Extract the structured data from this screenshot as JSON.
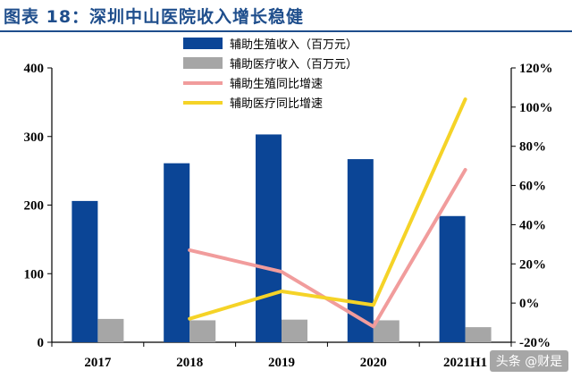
{
  "title": "图表 18：深圳中山医院收入增长稳健",
  "watermark": "头条 @财是",
  "colors": {
    "title": "#1f4e8c",
    "bar_primary": "#0b4596",
    "bar_secondary": "#a6a6a6",
    "line_primary": "#f19c9c",
    "line_secondary": "#f5d327"
  },
  "chart_data": {
    "type": "bar",
    "categories": [
      "2017",
      "2018",
      "2019",
      "2020",
      "2021H1"
    ],
    "y_left": {
      "ylim": [
        0,
        400
      ],
      "ticks": [
        "0",
        "100",
        "200",
        "300",
        "400"
      ]
    },
    "y_right": {
      "ylim": [
        -20,
        120
      ],
      "ticks": [
        "-20%",
        "0%",
        "20%",
        "40%",
        "60%",
        "80%",
        "100%",
        "120%"
      ]
    },
    "grid": false,
    "legend_position": "top-center",
    "series": [
      {
        "name": "辅助生殖收入（百万元）",
        "kind": "bar",
        "axis": "left",
        "values": [
          206,
          261,
          303,
          267,
          184
        ]
      },
      {
        "name": "辅助医疗收入（百万元）",
        "kind": "bar",
        "axis": "left",
        "values": [
          34,
          32,
          33,
          32,
          22
        ]
      },
      {
        "name": "辅助生殖同比增速",
        "kind": "line",
        "axis": "right",
        "values": [
          null,
          27,
          16,
          -12,
          68
        ]
      },
      {
        "name": "辅助医疗同比增速",
        "kind": "line",
        "axis": "right",
        "values": [
          null,
          -8,
          6,
          -1,
          104
        ]
      }
    ]
  }
}
